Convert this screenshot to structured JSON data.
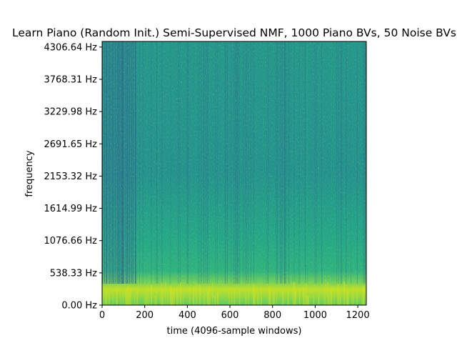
{
  "chart_data": {
    "type": "heatmap",
    "title": "Learn Piano (Random Init.) Semi-Supervised NMF, 1000 Piano BVs, 50 Noise BVs",
    "xlabel": "time (4096-sample windows)",
    "ylabel": "frequency",
    "xlim": [
      0,
      1240
    ],
    "ylim": [
      0,
      4400
    ],
    "x_ticks": [
      0,
      200,
      400,
      600,
      800,
      1000,
      1200
    ],
    "x_tick_labels": [
      "0",
      "200",
      "400",
      "600",
      "800",
      "1000",
      "1200"
    ],
    "y_ticks": [
      0,
      538.33,
      1076.66,
      1614.99,
      2153.32,
      2691.65,
      3229.98,
      3768.31,
      4306.64
    ],
    "y_tick_labels": [
      "0.00 Hz",
      "538.33 Hz",
      "1076.66 Hz",
      "1614.99 Hz",
      "2153.32 Hz",
      "2691.65 Hz",
      "3229.98 Hz",
      "3768.31 Hz",
      "4306.64 Hz"
    ],
    "colormap": "viridis",
    "colors": {
      "low": "#31668e",
      "mid": "#21908d",
      "high": "#b5de2b",
      "peak": "#d7e219"
    }
  }
}
